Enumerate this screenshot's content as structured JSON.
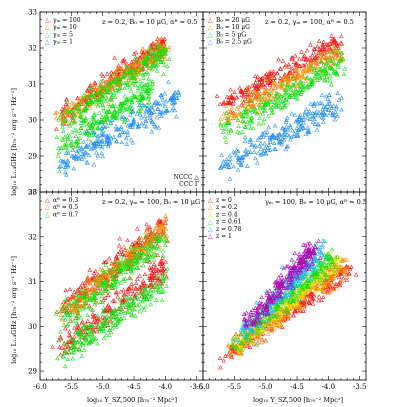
{
  "figure": {
    "ylabel": "log₁₀ L₁.₄GHz [h₇₀⁻² erg s⁻¹ Hz⁻¹]",
    "xlabel": "log₁₀ Y_SZ,500 [h₇₀⁻² Mpc²]",
    "x_ticks": [
      "-6.0",
      "-5.5",
      "-5.0",
      "-4.5",
      "-4.0",
      "-3.5"
    ],
    "x_ticks_right": [
      "-6.0",
      "-5.5",
      "-5.0",
      "-4.5",
      "-4.0",
      "-3.5"
    ],
    "y_ticks": [
      "29",
      "30",
      "31",
      "32",
      "33"
    ],
    "y_ticks_top": [
      "28",
      "29",
      "30",
      "31",
      "32",
      "33"
    ],
    "xlim": [
      -6.0,
      -3.4
    ],
    "colors": {
      "red": "#ff1010",
      "orange": "#ff8c00",
      "yellow": "#e6e000",
      "green": "#10e010",
      "cyan": "#1eb4ff",
      "blue": "#1e8cff",
      "purple": "#b000b0"
    }
  },
  "chart_data": [
    {
      "type": "scatter",
      "title": "z = 0.2, B₀ = 10 μG, αᴮ = 0.5",
      "xlim": [
        -6.0,
        -3.4
      ],
      "ylim": [
        28.0,
        33.0
      ],
      "legend": [
        "γₘ = 100",
        "γₘ = 10",
        "γₘ = 5",
        "γₘ = 1"
      ],
      "notes": [
        "NCCC △",
        "CCC Γ"
      ],
      "series": [
        {
          "name": "γₘ = 100",
          "color": "#ff1010",
          "trend": [
            [
              -5.7,
              30.1
            ],
            [
              -4.0,
              32.1
            ]
          ],
          "scatter": 0.15
        },
        {
          "name": "γₘ = 10",
          "color": "#ff8c00",
          "trend": [
            [
              -5.7,
              30.0
            ],
            [
              -4.0,
              32.0
            ]
          ],
          "scatter": 0.15
        },
        {
          "name": "γₘ = 5",
          "color": "#10e010",
          "trend": [
            [
              -5.7,
              29.9
            ],
            [
              -4.0,
              31.9
            ]
          ],
          "scatter": 0.18,
          "trend2": [
            [
              -5.7,
              29.2
            ],
            [
              -4.2,
              30.9
            ]
          ]
        },
        {
          "name": "γₘ = 1",
          "color": "#1e8cff",
          "trend": [
            [
              -5.7,
              28.7
            ],
            [
              -3.8,
              30.6
            ]
          ],
          "scatter": 0.2
        }
      ]
    },
    {
      "type": "scatter",
      "title": "z = 0.2, γₘ = 100, αᴮ = 0.5",
      "xlim": [
        -6.0,
        -3.4
      ],
      "ylim": [
        28.0,
        33.0
      ],
      "legend": [
        "B₀ = 20 μG",
        "B₀ = 10 μG",
        "B₀ = 5 μG",
        "B₀ = 2.5 μG"
      ],
      "series": [
        {
          "name": "B₀ = 20 μG",
          "color": "#ff1010",
          "trend": [
            [
              -5.7,
              30.4
            ],
            [
              -3.8,
              32.2
            ]
          ],
          "scatter": 0.15
        },
        {
          "name": "B₀ = 10 μG",
          "color": "#ff8c00",
          "trend": [
            [
              -5.7,
              30.0
            ],
            [
              -3.8,
              31.9
            ]
          ],
          "scatter": 0.15
        },
        {
          "name": "B₀ = 5 μG",
          "color": "#10e010",
          "trend": [
            [
              -5.7,
              29.6
            ],
            [
              -3.8,
              31.6
            ]
          ],
          "scatter": 0.18
        },
        {
          "name": "B₀ = 2.5 μG",
          "color": "#1e8cff",
          "trend": [
            [
              -5.7,
              28.7
            ],
            [
              -3.8,
              30.5
            ]
          ],
          "scatter": 0.2
        }
      ]
    },
    {
      "type": "scatter",
      "title": "z = 0.2, γₘ = 100, B₀ = 10 μG",
      "xlim": [
        -6.0,
        -3.4
      ],
      "ylim": [
        28.8,
        33.0
      ],
      "legend": [
        "αᴮ = 0.3",
        "αᴮ = 0.5",
        "αᴮ = 0.7"
      ],
      "series": [
        {
          "name": "αᴮ = 0.3",
          "color": "#ff1010",
          "trend": [
            [
              -5.7,
              30.3
            ],
            [
              -4.0,
              32.3
            ]
          ],
          "scatter": 0.15,
          "trend2": [
            [
              -5.7,
              29.5
            ],
            [
              -4.0,
              31.3
            ]
          ]
        },
        {
          "name": "αᴮ = 0.5",
          "color": "#ff8c00",
          "trend": [
            [
              -5.7,
              30.2
            ],
            [
              -4.0,
              32.2
            ]
          ],
          "scatter": 0.12
        },
        {
          "name": "αᴮ = 0.7",
          "color": "#10e010",
          "trend": [
            [
              -5.7,
              30.1
            ],
            [
              -4.0,
              32.0
            ]
          ],
          "scatter": 0.15,
          "trend2": [
            [
              -5.7,
              29.3
            ],
            [
              -4.0,
              31.0
            ]
          ]
        }
      ]
    },
    {
      "type": "scatter",
      "title": "γₘ = 100, B₀ = 10 μG, αᴮ = 0.5",
      "xlim": [
        -6.0,
        -3.4
      ],
      "ylim": [
        28.8,
        33.0
      ],
      "legend": [
        "z = 0",
        "z = 0.2",
        "z = 0.4",
        "z = 0.61",
        "z = 0.78",
        "z = 1"
      ],
      "series": [
        {
          "name": "z = 0",
          "color": "#ff1010",
          "trend": [
            [
              -5.7,
              29.3
            ],
            [
              -3.6,
              31.3
            ]
          ],
          "scatter": 0.13
        },
        {
          "name": "z = 0.2",
          "color": "#ff8c00",
          "trend": [
            [
              -5.6,
              29.4
            ],
            [
              -3.7,
              31.4
            ]
          ],
          "scatter": 0.13
        },
        {
          "name": "z = 0.4",
          "color": "#e6e000",
          "trend": [
            [
              -5.5,
              29.5
            ],
            [
              -3.8,
              31.5
            ]
          ],
          "scatter": 0.13
        },
        {
          "name": "z = 0.61",
          "color": "#10e010",
          "trend": [
            [
              -5.5,
              29.6
            ],
            [
              -3.9,
              31.6
            ]
          ],
          "scatter": 0.13
        },
        {
          "name": "z = 0.78",
          "color": "#1eb4ff",
          "trend": [
            [
              -5.4,
              29.8
            ],
            [
              -4.1,
              31.7
            ]
          ],
          "scatter": 0.13
        },
        {
          "name": "z = 1",
          "color": "#b000b0",
          "trend": [
            [
              -5.3,
              30.0
            ],
            [
              -4.2,
              31.8
            ]
          ],
          "scatter": 0.12
        }
      ]
    }
  ]
}
